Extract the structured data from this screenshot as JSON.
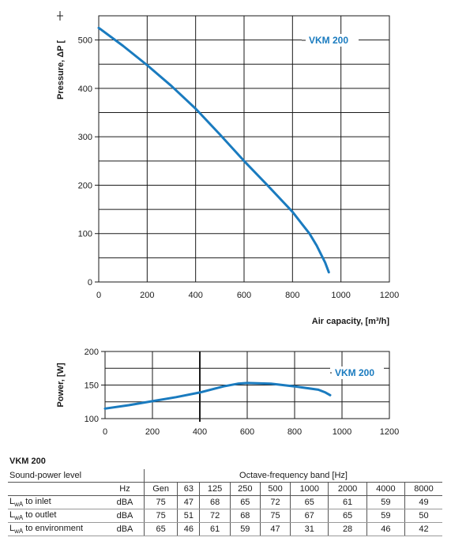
{
  "chart_data": [
    {
      "type": "line",
      "ylabel": "Pressure, ΔP [",
      "xlabel": "Air capacity, [m³/h]",
      "xlim": [
        0,
        1200
      ],
      "ylim": [
        0,
        550
      ],
      "x_ticks": [
        "0",
        "200",
        "400",
        "600",
        "800",
        "1000",
        "1200"
      ],
      "y_ticks": [
        "0",
        "100",
        "200",
        "300",
        "400",
        "500"
      ],
      "grid": true,
      "legend": "top-right",
      "series": [
        {
          "name": "VKM 200",
          "color": "#1a7bbf",
          "x": [
            0,
            100,
            200,
            300,
            400,
            500,
            600,
            700,
            800,
            870,
            900,
            920,
            935,
            950
          ],
          "y": [
            525,
            488,
            448,
            405,
            358,
            305,
            250,
            198,
            145,
            100,
            75,
            55,
            40,
            20
          ]
        }
      ]
    },
    {
      "type": "line",
      "ylabel": "Power, [W]",
      "xlabel": "",
      "xlim": [
        0,
        1200
      ],
      "ylim": [
        100,
        200
      ],
      "x_ticks": [
        "0",
        "200",
        "400",
        "600",
        "800",
        "1000",
        "1200"
      ],
      "y_ticks": [
        "100",
        "150",
        "200"
      ],
      "grid": true,
      "legend": "top-right",
      "series": [
        {
          "name": "VKM 200",
          "color": "#1a7bbf",
          "x": [
            0,
            100,
            200,
            300,
            400,
            500,
            560,
            600,
            700,
            800,
            900,
            930,
            950
          ],
          "y": [
            115,
            120,
            126,
            132,
            139,
            148,
            152,
            153,
            152,
            148,
            143,
            139,
            135
          ]
        }
      ]
    }
  ],
  "table": {
    "title": "VKM 200",
    "label_col": "Sound-power level",
    "band_header": "Octave-frequency band [Hz]",
    "unit_hz": "Hz",
    "columns": [
      "Gen",
      "63",
      "125",
      "250",
      "500",
      "1000",
      "2000",
      "4000",
      "8000"
    ],
    "rows": [
      {
        "prefix": "L",
        "sub": "wA",
        "suffix": " to inlet",
        "unit": "dBA",
        "values": [
          "75",
          "47",
          "68",
          "65",
          "72",
          "65",
          "61",
          "59",
          "49"
        ]
      },
      {
        "prefix": "L",
        "sub": "wA",
        "suffix": " to outlet",
        "unit": "dBA",
        "values": [
          "75",
          "51",
          "72",
          "68",
          "75",
          "67",
          "65",
          "59",
          "50"
        ]
      },
      {
        "prefix": "L",
        "sub": "wA",
        "suffix": " to environment",
        "unit": "dBA",
        "values": [
          "65",
          "46",
          "61",
          "59",
          "47",
          "31",
          "28",
          "46",
          "42"
        ]
      }
    ]
  }
}
